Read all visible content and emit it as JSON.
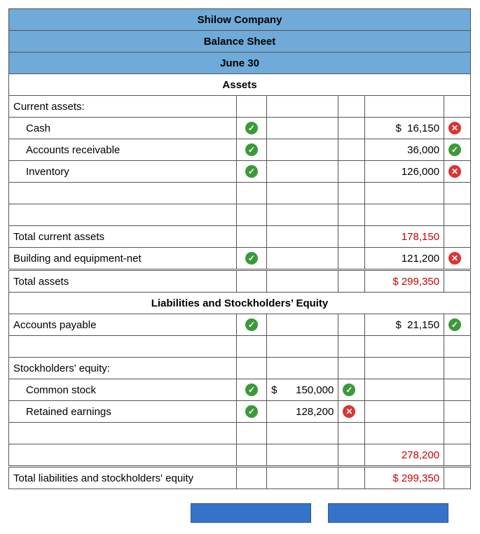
{
  "header": {
    "company": "Shilow Company",
    "report": "Balance Sheet",
    "date": "June 30"
  },
  "assets_title": "Assets",
  "current_assets_label": "Current assets:",
  "rows": {
    "cash": {
      "label": "Cash",
      "chk": "ok",
      "cur": "$",
      "val": "16,150",
      "mark": "bad"
    },
    "ar": {
      "label": "Accounts receivable",
      "chk": "ok",
      "val": "36,000",
      "mark": "ok"
    },
    "inv": {
      "label": "Inventory",
      "chk": "ok",
      "val": "126,000",
      "mark": "bad"
    },
    "tca": {
      "label": "Total current assets",
      "val": "178,150"
    },
    "bldg": {
      "label": "Building and equipment-net",
      "chk": "ok",
      "val": "121,200",
      "mark": "bad"
    },
    "ta": {
      "label": "Total assets",
      "cur": "$",
      "val": "299,350"
    }
  },
  "liab_title": "Liabilities and Stockholders’ Equity",
  "ap": {
    "label": "Accounts payable",
    "chk": "ok",
    "cur": "$",
    "val": "21,150",
    "mark": "ok"
  },
  "se_label": "Stockholders' equity:",
  "cs": {
    "label": "Common stock",
    "chk": "ok",
    "cur": "$",
    "val": "150,000",
    "mark": "ok"
  },
  "re": {
    "label": "Retained earnings",
    "chk": "ok",
    "val": "128,200",
    "mark": "bad"
  },
  "se_tot": {
    "val": "278,200"
  },
  "tlse": {
    "label": "Total liabilities and stockholders' equity",
    "cur": "$",
    "val": "299,350"
  },
  "colors": {
    "header_bg": "#6faad8",
    "wrong": "#c00",
    "ok": "#3a9a3a",
    "bad": "#d33",
    "btn": "#3573c9"
  }
}
